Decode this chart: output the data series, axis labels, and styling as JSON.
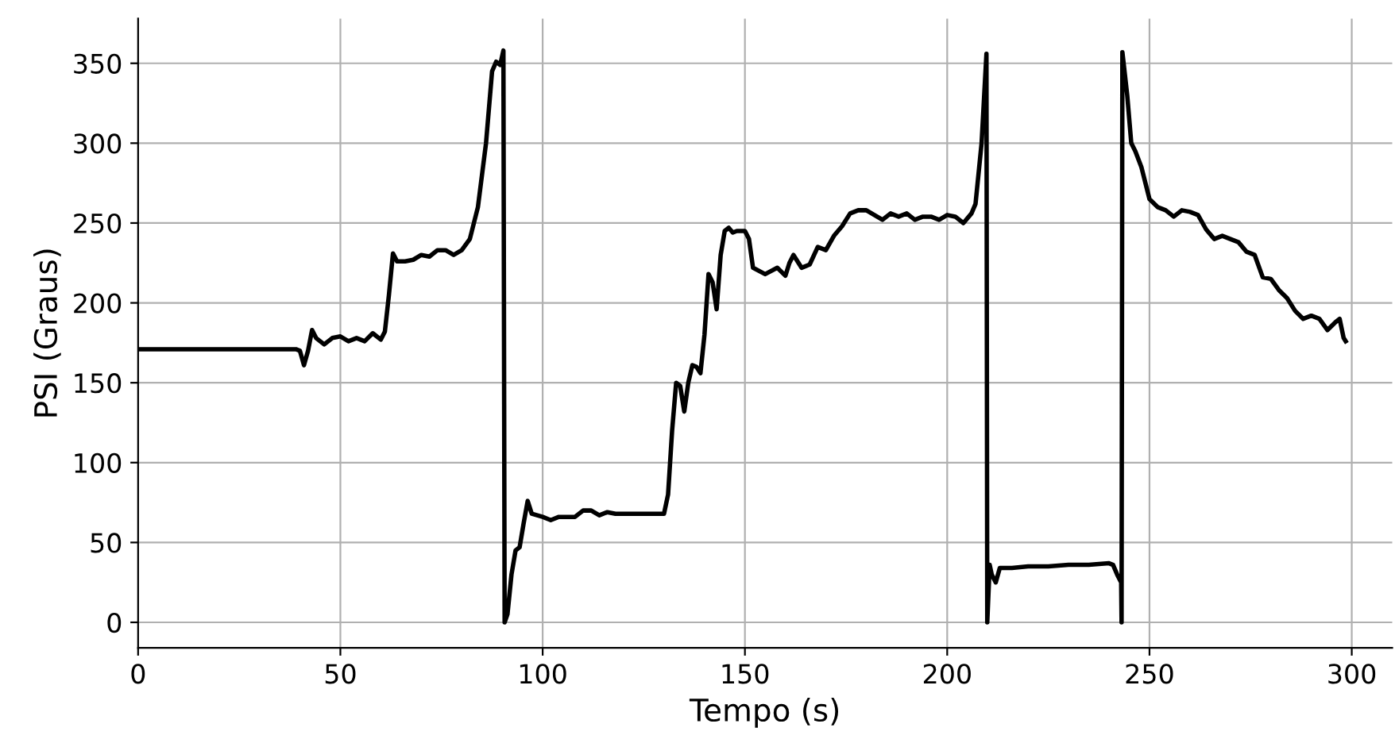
{
  "chart_data": {
    "type": "line",
    "xlabel": "Tempo (s)",
    "ylabel": "PSI (Graus)",
    "xlim": [
      0,
      310
    ],
    "ylim": [
      -16,
      378
    ],
    "xticks": [
      0,
      50,
      100,
      150,
      200,
      250,
      300
    ],
    "yticks": [
      0,
      50,
      100,
      150,
      200,
      250,
      300,
      350
    ],
    "grid": true,
    "marker": "none",
    "line_style": "solid",
    "series": [
      {
        "color": "#000000",
        "x": [
          0,
          20,
          39,
          40,
          41,
          42,
          43,
          44,
          46,
          48,
          50,
          52,
          54,
          56,
          58,
          60,
          61,
          62,
          63,
          64,
          66,
          68,
          70,
          72,
          74,
          76,
          78,
          80,
          82,
          84,
          86,
          87.5,
          88.5,
          89.5,
          90.3,
          90.6,
          91.3,
          92.3,
          93.3,
          94.3,
          95.3,
          96.3,
          97.3,
          100,
          102,
          104,
          106,
          108,
          110,
          112,
          114,
          116,
          118,
          120,
          124,
          128,
          130,
          131,
          132,
          133,
          134,
          135,
          136,
          137,
          138,
          139,
          140,
          141,
          142,
          143,
          144,
          145,
          146,
          147,
          148,
          150,
          151,
          152,
          155,
          158,
          160,
          161,
          162,
          164,
          166,
          168,
          170,
          172,
          174,
          176,
          178,
          180,
          182,
          184,
          186,
          188,
          190,
          192,
          194,
          196,
          198,
          200,
          202,
          204,
          206,
          207,
          208.5,
          209.7,
          209.9,
          210.5,
          211,
          212,
          213,
          214,
          216,
          220,
          225,
          230,
          235,
          240,
          241,
          242,
          243,
          243.1,
          243.3,
          244.5,
          245.5,
          246.5,
          248,
          250,
          252,
          254,
          256,
          258,
          260,
          262,
          264,
          266,
          268,
          270,
          272,
          274,
          276,
          278,
          280,
          282,
          284,
          286,
          288,
          290,
          292,
          294,
          296,
          297,
          298,
          298.5
        ],
        "values": [
          171,
          171,
          171,
          170,
          161,
          170,
          183,
          178,
          174,
          178,
          179,
          176,
          178,
          176,
          181,
          177,
          182,
          205,
          231,
          226,
          226,
          227,
          230,
          229,
          233,
          233,
          230,
          233,
          240,
          260,
          300,
          345,
          351,
          349,
          358,
          0,
          5,
          30,
          45,
          47,
          62,
          76,
          68,
          66,
          64,
          66,
          66,
          66,
          70,
          70,
          67,
          69,
          68,
          68,
          68,
          68,
          68,
          80,
          120,
          150,
          148,
          132,
          150,
          161,
          160,
          156,
          180,
          218,
          213,
          196,
          230,
          245,
          247,
          244,
          245,
          245,
          240,
          222,
          218,
          222,
          217,
          225,
          230,
          222,
          224,
          235,
          233,
          242,
          248,
          256,
          258,
          258,
          255,
          252,
          256,
          254,
          256,
          252,
          254,
          254,
          252,
          255,
          254,
          250,
          256,
          262,
          300,
          356,
          0,
          36,
          30,
          25,
          34,
          34,
          34,
          35,
          35,
          36,
          36,
          37,
          36,
          30,
          25,
          0,
          357,
          330,
          300,
          295,
          285,
          265,
          260,
          258,
          254,
          258,
          257,
          255,
          246,
          240,
          242,
          240,
          238,
          232,
          230,
          216,
          215,
          208,
          203,
          195,
          190,
          192,
          190,
          183,
          188,
          190,
          178,
          176
        ]
      }
    ]
  }
}
